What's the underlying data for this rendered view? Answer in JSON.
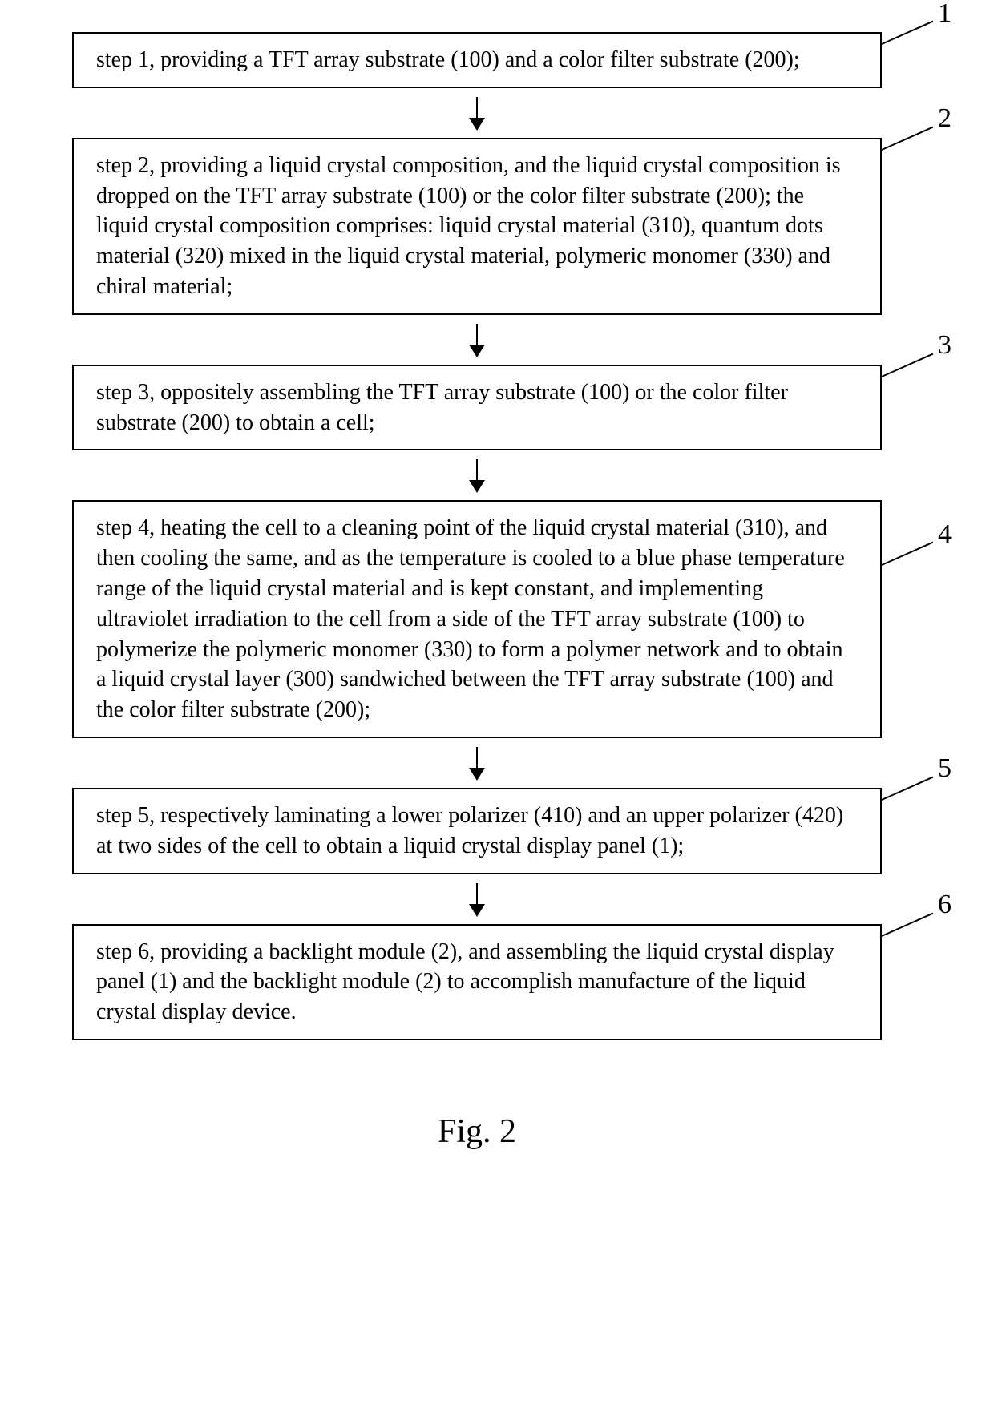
{
  "diagram": {
    "type": "flowchart",
    "background_color": "#ffffff",
    "border_color": "#000000",
    "text_color": "#000000",
    "font_family": "Times New Roman",
    "step_font_size": 28,
    "label_font_size": 34,
    "figure_font_size": 42,
    "box_border_width": 2,
    "arrow_length": 40,
    "arrowhead_size": 16,
    "steps": [
      {
        "label": "1",
        "text": "step 1, providing a TFT array substrate (100) and a color filter substrate (200);"
      },
      {
        "label": "2",
        "text": "step 2, providing a liquid crystal composition, and the liquid crystal composition is dropped on the TFT array substrate (100) or the color filter substrate (200); the liquid crystal composition comprises: liquid crystal material (310), quantum dots material (320) mixed in the liquid crystal material, polymeric monomer (330) and chiral material;"
      },
      {
        "label": "3",
        "text": "step 3, oppositely assembling the TFT array substrate (100) or the color filter substrate (200) to obtain a cell;"
      },
      {
        "label": "4",
        "text": "step 4, heating the cell to a cleaning point of the liquid crystal material (310), and then cooling the same, and as the temperature is cooled to a blue phase temperature range of the liquid crystal material and is kept constant, and implementing ultraviolet irradiation to the cell from a side of the TFT array substrate (100) to polymerize the polymeric monomer (330) to form a polymer network and to obtain a liquid crystal layer (300) sandwiched between the TFT array substrate (100) and the color filter substrate (200);"
      },
      {
        "label": "5",
        "text": "step 5, respectively laminating a lower polarizer (410) and an upper polarizer (420) at two sides of the cell to obtain a liquid crystal display panel (1);"
      },
      {
        "label": "6",
        "text": "step 6, providing a backlight module (2), and assembling the liquid crystal display panel (1) and the backlight module (2) to accomplish manufacture of the liquid crystal display device."
      }
    ],
    "figure_label": "Fig. 2",
    "callout_line": {
      "length": 70,
      "angle_deg": -24,
      "color": "#000000",
      "width": 2
    }
  }
}
